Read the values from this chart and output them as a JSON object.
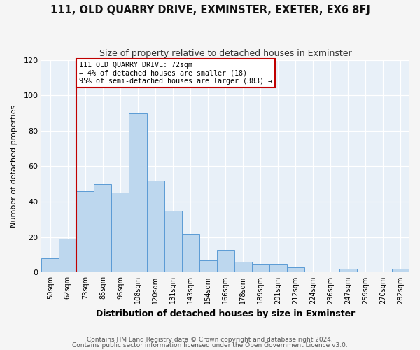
{
  "title": "111, OLD QUARRY DRIVE, EXMINSTER, EXETER, EX6 8FJ",
  "subtitle": "Size of property relative to detached houses in Exminster",
  "xlabel": "Distribution of detached houses by size in Exminster",
  "ylabel": "Number of detached properties",
  "bin_labels": [
    "50sqm",
    "62sqm",
    "73sqm",
    "85sqm",
    "96sqm",
    "108sqm",
    "120sqm",
    "131sqm",
    "143sqm",
    "154sqm",
    "166sqm",
    "178sqm",
    "189sqm",
    "201sqm",
    "212sqm",
    "224sqm",
    "236sqm",
    "247sqm",
    "259sqm",
    "270sqm",
    "282sqm"
  ],
  "bar_values": [
    8,
    19,
    46,
    50,
    45,
    90,
    52,
    35,
    22,
    7,
    13,
    6,
    5,
    5,
    3,
    0,
    0,
    2,
    0,
    0,
    2
  ],
  "bar_color": "#bdd7ee",
  "bar_edge_color": "#5b9bd5",
  "vline_index": 2,
  "vline_color": "#c00000",
  "annotation_text": "111 OLD QUARRY DRIVE: 72sqm\n← 4% of detached houses are smaller (18)\n95% of semi-detached houses are larger (383) →",
  "annotation_box_color": "#ffffff",
  "annotation_box_edge": "#c00000",
  "ylim": [
    0,
    120
  ],
  "yticks": [
    0,
    20,
    40,
    60,
    80,
    100,
    120
  ],
  "footer1": "Contains HM Land Registry data © Crown copyright and database right 2024.",
  "footer2": "Contains public sector information licensed under the Open Government Licence v3.0.",
  "fig_bg_color": "#f5f5f5",
  "plot_bg_color": "#e8f0f8"
}
